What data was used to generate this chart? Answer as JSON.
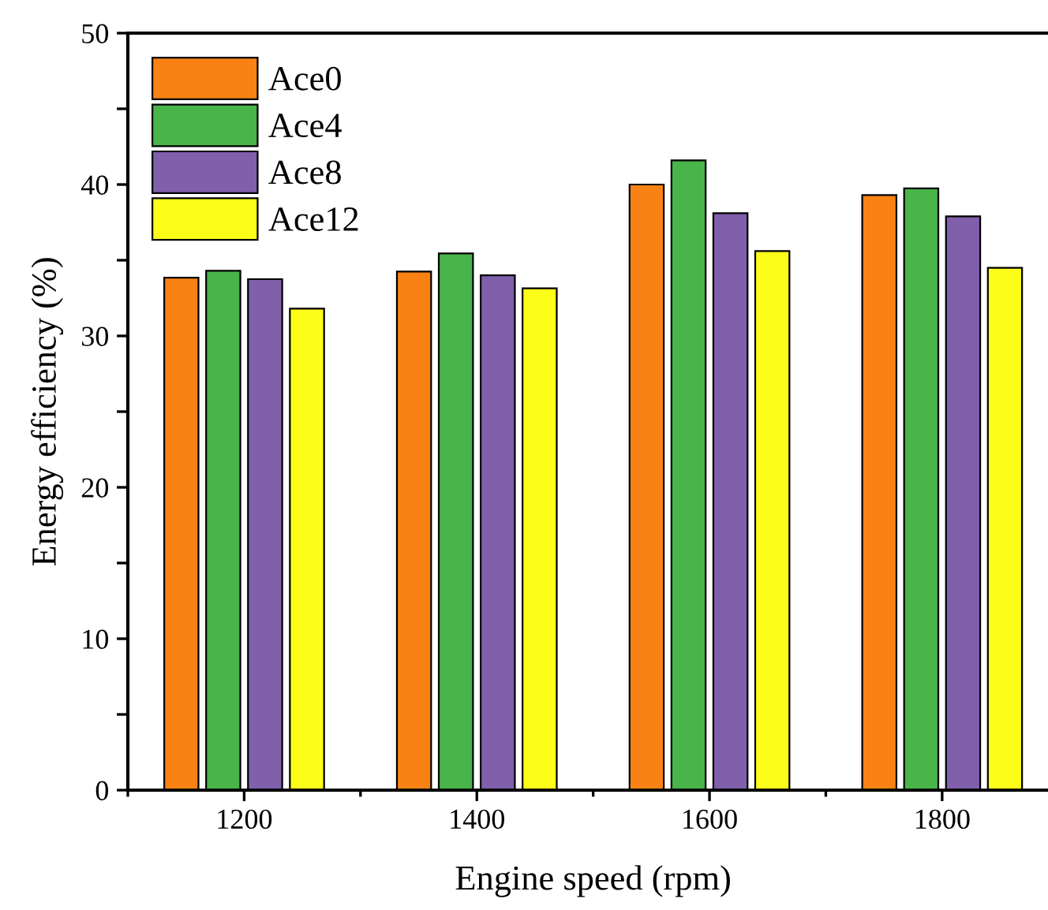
{
  "chart_data": {
    "type": "bar",
    "xlabel": "Engine speed (rpm)",
    "ylabel": "Energy efficiency (%)",
    "categories": [
      "1200",
      "1400",
      "1600",
      "1800"
    ],
    "series": [
      {
        "name": "Ace0",
        "color": "#fa8214",
        "values": [
          33.85,
          34.25,
          40.0,
          39.3
        ]
      },
      {
        "name": "Ace4",
        "color": "#48b44a",
        "values": [
          34.3,
          35.45,
          41.6,
          39.75
        ]
      },
      {
        "name": "Ace8",
        "color": "#805fab",
        "values": [
          33.75,
          34.0,
          38.1,
          37.9
        ]
      },
      {
        "name": "Ace12",
        "color": "#fdfd1a",
        "values": [
          31.8,
          33.15,
          35.6,
          34.5
        ]
      }
    ],
    "ylim": [
      0,
      50
    ],
    "yticks": [
      0,
      {
        "value": 5,
        "label": null
      },
      10,
      {
        "value": 15,
        "label": null
      },
      20,
      {
        "value": 25,
        "label": null
      },
      30,
      {
        "value": 35,
        "label": null
      },
      40,
      {
        "value": 45,
        "label": null
      },
      50
    ],
    "legend": "top left",
    "grid": false
  }
}
